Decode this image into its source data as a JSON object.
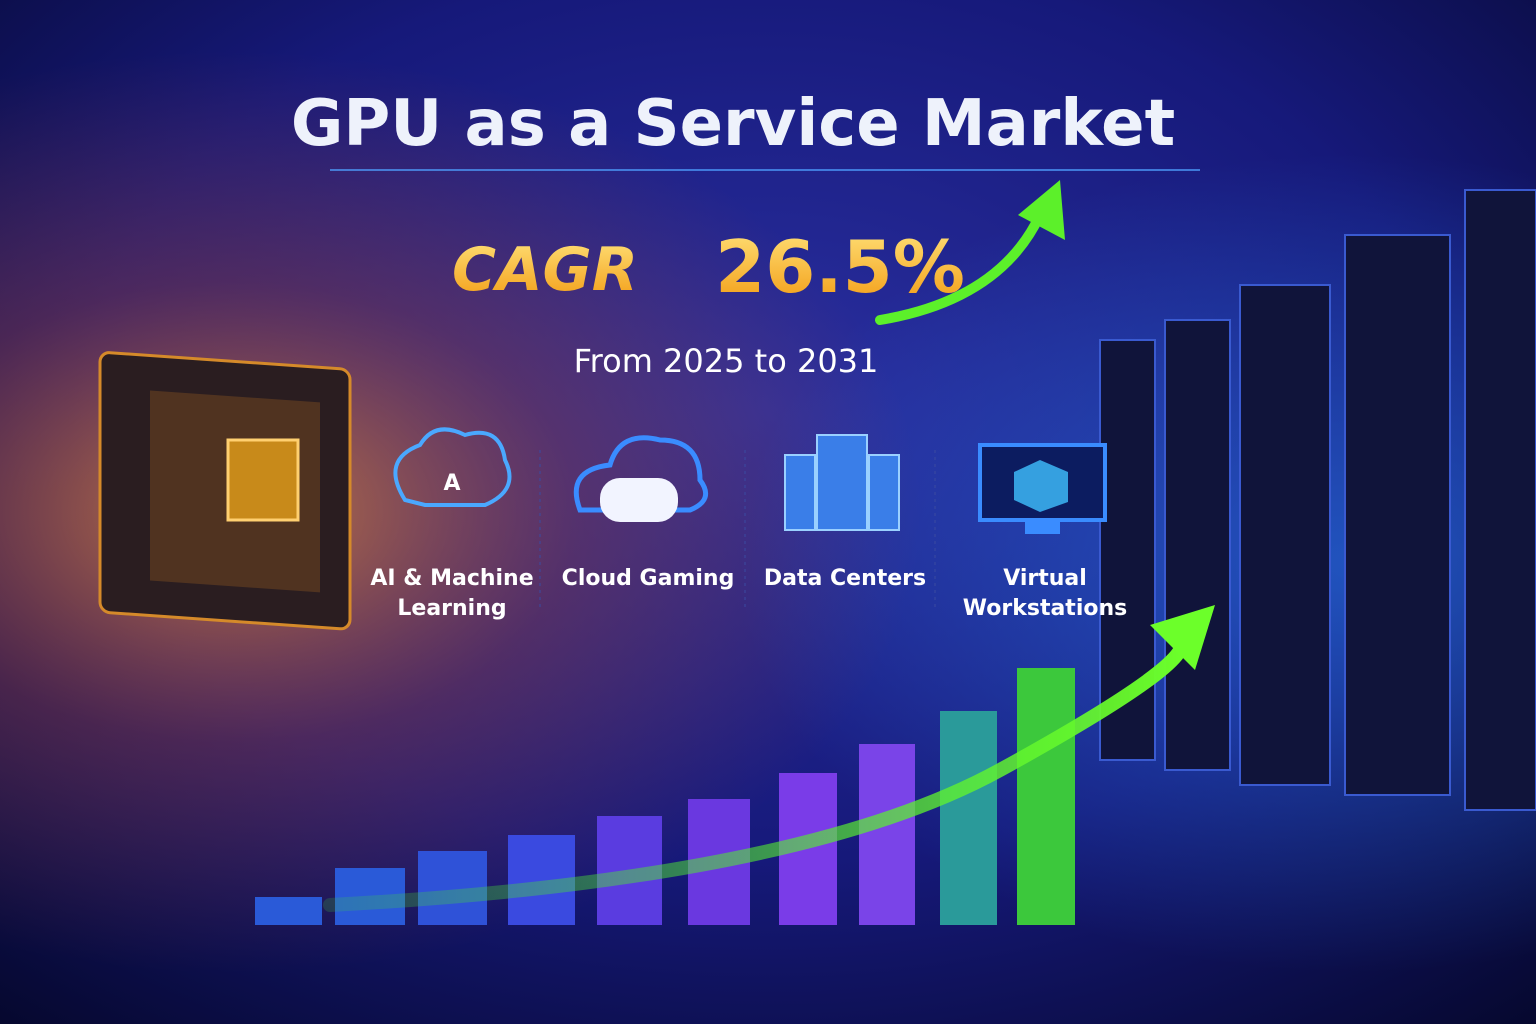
{
  "header": {
    "title": "GPU as a Service Market",
    "cagr_label": "CAGR",
    "cagr_value": "26.5%",
    "period": "From 2025 to 2031"
  },
  "segments": [
    {
      "lines": [
        "AI & Machine",
        "Learning"
      ]
    },
    {
      "lines": [
        "Cloud Gaming"
      ]
    },
    {
      "lines": [
        "Data Centers"
      ]
    },
    {
      "lines": [
        "Virtual",
        "Workstations"
      ]
    }
  ]
}
